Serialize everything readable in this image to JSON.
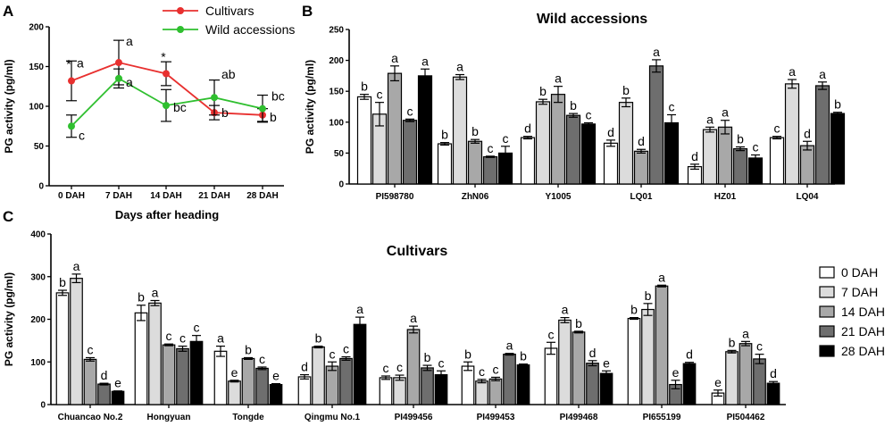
{
  "chart_data": [
    {
      "panel": "A",
      "type": "line",
      "title": "",
      "xlabel": "Days after heading",
      "ylabel": "PG activity (pg/ml)",
      "ylim": [
        0,
        200
      ],
      "yticks": [
        0,
        50,
        100,
        150,
        200
      ],
      "categories": [
        "0 DAH",
        "7 DAH",
        "14 DAH",
        "21 DAH",
        "28 DAH"
      ],
      "legend_position": "top-right",
      "series": [
        {
          "name": "Cultivars",
          "color": "#e8302f",
          "values": [
            132,
            155,
            141,
            92,
            89
          ],
          "errors": [
            25,
            28,
            15,
            9,
            8
          ],
          "letters": [
            "a",
            "a",
            "",
            "b",
            "b"
          ],
          "stars": [
            "*",
            "",
            "*",
            "",
            ""
          ]
        },
        {
          "name": "Wild accessions",
          "color": "#2fbf2f",
          "values": [
            75,
            135,
            101,
            111,
            97
          ],
          "errors": [
            14,
            12,
            20,
            22,
            17
          ],
          "letters": [
            "c",
            "a",
            "bc",
            "ab",
            "bc"
          ]
        }
      ]
    },
    {
      "panel": "B",
      "type": "bar",
      "title": "Wild accessions",
      "xlabel": "",
      "ylabel": "PG activity (pg/ml)",
      "ylim": [
        0,
        250
      ],
      "yticks": [
        0,
        50,
        100,
        150,
        200,
        250
      ],
      "categories": [
        "PI598780",
        "ZhN06",
        "Y1005",
        "LQ01",
        "HZ01",
        "LQ04"
      ],
      "series": [
        {
          "name": "0 DAH",
          "values": [
            141,
            65,
            75,
            66,
            28,
            75
          ],
          "errors": [
            4,
            2,
            2,
            5,
            4,
            2
          ],
          "letters": [
            "b",
            "b",
            "d",
            "d",
            "d",
            "c"
          ]
        },
        {
          "name": "7 DAH",
          "values": [
            113,
            173,
            133,
            132,
            88,
            162
          ],
          "errors": [
            19,
            4,
            4,
            7,
            4,
            7
          ],
          "letters": [
            "c",
            "a",
            "b",
            "b",
            "a",
            "a"
          ]
        },
        {
          "name": "14 DAH",
          "values": [
            179,
            69,
            145,
            53,
            92,
            62
          ],
          "errors": [
            12,
            3,
            13,
            3,
            11,
            7
          ],
          "letters": [
            "a",
            "b",
            "a",
            "d",
            "a",
            "d"
          ]
        },
        {
          "name": "21 DAH",
          "values": [
            103,
            44,
            111,
            191,
            57,
            159
          ],
          "errors": [
            2,
            1,
            3,
            10,
            3,
            6
          ],
          "letters": [
            "c",
            "c",
            "b",
            "a",
            "b",
            "a"
          ]
        },
        {
          "name": "28 DAH",
          "values": [
            175,
            50,
            97,
            99,
            42,
            114
          ],
          "errors": [
            11,
            11,
            2,
            13,
            5,
            2
          ],
          "letters": [
            "a",
            "c",
            "c",
            "c",
            "c",
            "b"
          ]
        }
      ]
    },
    {
      "panel": "C",
      "type": "bar",
      "title": "Cultivars",
      "xlabel": "",
      "ylabel": "PG activity (pg/ml)",
      "ylim": [
        0,
        400
      ],
      "yticks": [
        0,
        100,
        200,
        300,
        400
      ],
      "categories": [
        "Chuancao No.2",
        "Hongyuan",
        "Tongde",
        "Qingmu No.1",
        "PI499456",
        "PI499453",
        "PI499468",
        "PI655199",
        "PI504462"
      ],
      "legend_position": "right",
      "series": [
        {
          "name": "0 DAH",
          "values": [
            262,
            215,
            125,
            65,
            63,
            90,
            132,
            202,
            27
          ],
          "errors": [
            6,
            18,
            12,
            5,
            4,
            10,
            14,
            2,
            7
          ],
          "letters": [
            "b",
            "b",
            "a",
            "d",
            "c",
            "b",
            "c",
            "b",
            "e"
          ]
        },
        {
          "name": "7 DAH",
          "values": [
            296,
            238,
            55,
            135,
            63,
            55,
            198,
            223,
            124
          ],
          "errors": [
            10,
            6,
            2,
            2,
            6,
            4,
            6,
            14,
            3
          ],
          "letters": [
            "a",
            "a",
            "e",
            "b",
            "c",
            "c",
            "a",
            "b",
            "b"
          ]
        },
        {
          "name": "14 DAH",
          "values": [
            106,
            140,
            108,
            90,
            176,
            60,
            170,
            278,
            143
          ],
          "errors": [
            4,
            2,
            2,
            10,
            8,
            4,
            2,
            2,
            5
          ],
          "letters": [
            "c",
            "c",
            "b",
            "c",
            "a",
            "c",
            "b",
            "a",
            "a"
          ]
        },
        {
          "name": "21 DAH",
          "values": [
            48,
            131,
            85,
            108,
            86,
            118,
            97,
            47,
            107
          ],
          "errors": [
            2,
            6,
            3,
            4,
            6,
            2,
            6,
            10,
            11
          ],
          "letters": [
            "d",
            "c",
            "c",
            "c",
            "b",
            "a",
            "d",
            "e",
            "c"
          ]
        },
        {
          "name": "28 DAH",
          "values": [
            31,
            148,
            47,
            188,
            70,
            93,
            73,
            96,
            50
          ],
          "errors": [
            1,
            14,
            2,
            17,
            9,
            2,
            6,
            3,
            4
          ],
          "letters": [
            "e",
            "c",
            "e",
            "a",
            "c",
            "b",
            "e",
            "d",
            "d"
          ]
        }
      ]
    }
  ],
  "legend": {
    "labels": [
      "0 DAH",
      "7 DAH",
      "14 DAH",
      "21 DAH",
      "28 DAH"
    ],
    "colors": [
      "#ffffff",
      "#dcdcdc",
      "#a8a8a8",
      "#6e6e6e",
      "#000000"
    ]
  },
  "panel_labels": [
    "A",
    "B",
    "C"
  ]
}
